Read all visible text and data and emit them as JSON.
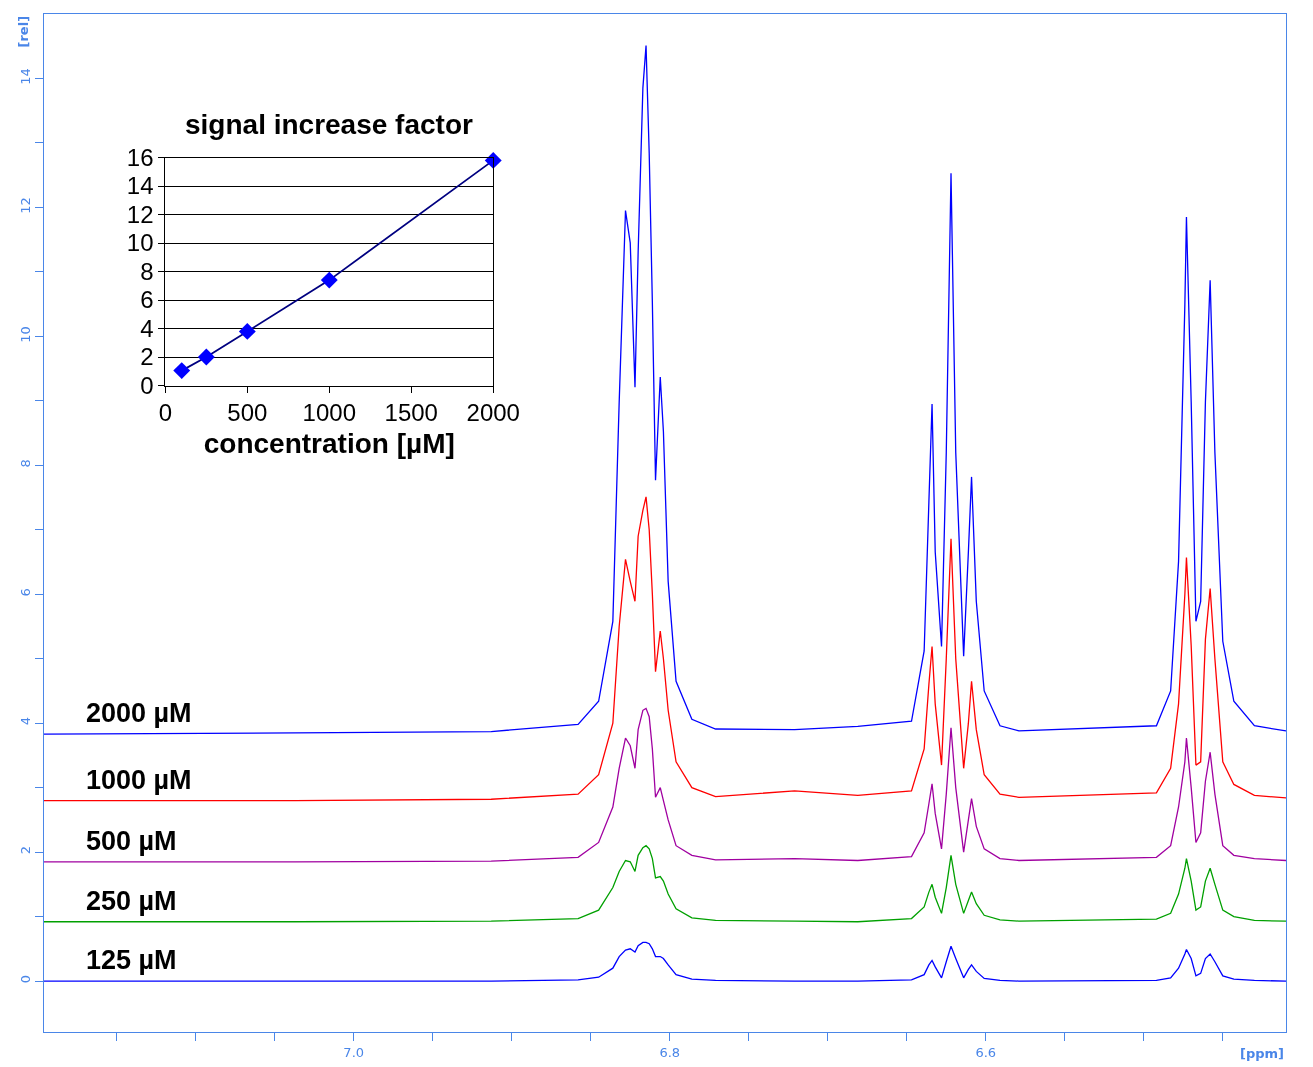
{
  "chart_data": [
    {
      "type": "line",
      "xlabel": "[ppm]",
      "ylabel": "[rel]",
      "xlim": [
        7.196,
        6.41
      ],
      "ylim": [
        -0.79,
        15.0
      ],
      "xticks": [
        {
          "value": 7.15,
          "label": null
        },
        {
          "value": 7.1,
          "label": null
        },
        {
          "value": 7.05,
          "label": null
        },
        {
          "value": 7.0,
          "label": "7.0"
        },
        {
          "value": 6.95,
          "label": null
        },
        {
          "value": 6.9,
          "label": null
        },
        {
          "value": 6.85,
          "label": null
        },
        {
          "value": 6.8,
          "label": "6.8"
        },
        {
          "value": 6.75,
          "label": null
        },
        {
          "value": 6.7,
          "label": null
        },
        {
          "value": 6.65,
          "label": null
        },
        {
          "value": 6.6,
          "label": "6.6"
        },
        {
          "value": 6.55,
          "label": null
        },
        {
          "value": 6.5,
          "label": null
        },
        {
          "value": 6.45,
          "label": null
        }
      ],
      "yticks": [
        0,
        {
          "value": 1,
          "label": null
        },
        2,
        {
          "value": 3,
          "label": null
        },
        4,
        {
          "value": 5,
          "label": null
        },
        6,
        {
          "value": 7,
          "label": null
        },
        8,
        {
          "value": 9,
          "label": null
        },
        10,
        {
          "value": 11,
          "label": null
        },
        12,
        {
          "value": 13,
          "label": null
        },
        14
      ],
      "grid": false,
      "marker": "none",
      "line_style": "solid",
      "x": [
        7.196,
        7.037,
        6.913,
        6.858,
        6.845,
        6.836,
        6.832,
        6.828,
        6.825,
        6.822,
        6.82,
        6.817,
        6.815,
        6.813,
        6.811,
        6.809,
        6.806,
        6.804,
        6.801,
        6.796,
        6.786,
        6.771,
        6.721,
        6.681,
        6.647,
        6.639,
        6.636,
        6.634,
        6.632,
        6.628,
        6.625,
        6.622,
        6.619,
        6.614,
        6.611,
        6.609,
        6.606,
        6.601,
        6.591,
        6.579,
        6.492,
        6.483,
        6.478,
        6.474,
        6.473,
        6.47,
        6.467,
        6.464,
        6.461,
        6.458,
        6.455,
        6.45,
        6.443,
        6.43,
        6.41
      ],
      "series": [
        {
          "name": "2000 µM",
          "color": "#0000ff",
          "values": [
            3.83,
            3.85,
            3.87,
            3.98,
            4.34,
            5.58,
            8.98,
            11.95,
            11.45,
            9.21,
            11.3,
            13.85,
            14.51,
            12.84,
            10.52,
            7.77,
            9.37,
            8.52,
            6.2,
            4.65,
            4.06,
            3.91,
            3.9,
            3.95,
            4.03,
            5.12,
            7.43,
            8.95,
            6.66,
            5.19,
            8.2,
            12.53,
            8.2,
            5.04,
            6.66,
            7.82,
            5.89,
            4.5,
            3.96,
            3.88,
            3.96,
            4.5,
            6.51,
            10.5,
            11.85,
            8.98,
            5.58,
            5.89,
            8.98,
            10.87,
            8.2,
            5.27,
            4.34,
            3.96,
            3.88
          ]
        },
        {
          "name": "1000 µM",
          "color": "#ff0000",
          "values": [
            2.8,
            2.8,
            2.82,
            2.9,
            3.2,
            4.0,
            5.5,
            6.54,
            6.2,
            5.89,
            6.9,
            7.3,
            7.51,
            7.0,
            6.0,
            4.8,
            5.43,
            5.0,
            4.2,
            3.4,
            3.0,
            2.86,
            2.95,
            2.88,
            2.95,
            3.6,
            4.6,
            5.19,
            4.3,
            3.35,
            5.0,
            6.86,
            5.0,
            3.3,
            4.0,
            4.65,
            3.9,
            3.2,
            2.9,
            2.85,
            2.92,
            3.3,
            4.3,
            6.0,
            6.57,
            5.2,
            3.35,
            3.4,
            5.3,
            6.09,
            5.0,
            3.4,
            3.05,
            2.88,
            2.84
          ]
        },
        {
          "name": "500 µM",
          "color": "#a000a0",
          "values": [
            1.85,
            1.85,
            1.86,
            1.92,
            2.15,
            2.7,
            3.3,
            3.77,
            3.65,
            3.3,
            3.9,
            4.2,
            4.23,
            4.1,
            3.6,
            2.85,
            3.0,
            2.8,
            2.5,
            2.1,
            1.95,
            1.88,
            1.9,
            1.87,
            1.93,
            2.3,
            2.75,
            3.06,
            2.6,
            2.05,
            2.9,
            3.93,
            3.0,
            2.0,
            2.5,
            2.83,
            2.4,
            2.05,
            1.9,
            1.87,
            1.92,
            2.1,
            2.7,
            3.4,
            3.77,
            3.0,
            2.15,
            2.3,
            3.1,
            3.55,
            2.9,
            2.1,
            1.95,
            1.9,
            1.87
          ]
        },
        {
          "name": "250 µM",
          "color": "#00a000",
          "values": [
            0.92,
            0.92,
            0.93,
            0.97,
            1.1,
            1.45,
            1.7,
            1.87,
            1.85,
            1.7,
            1.95,
            2.07,
            2.1,
            2.05,
            1.9,
            1.6,
            1.62,
            1.55,
            1.35,
            1.12,
            0.98,
            0.94,
            0.93,
            0.92,
            0.97,
            1.15,
            1.38,
            1.5,
            1.3,
            1.05,
            1.45,
            1.95,
            1.5,
            1.05,
            1.25,
            1.38,
            1.2,
            1.02,
            0.95,
            0.93,
            0.96,
            1.05,
            1.35,
            1.75,
            1.9,
            1.55,
            1.1,
            1.15,
            1.55,
            1.75,
            1.5,
            1.1,
            1.0,
            0.94,
            0.93
          ]
        },
        {
          "name": "125 µM",
          "color": "#0000ff",
          "values": [
            0,
            0,
            0,
            0.02,
            0.06,
            0.2,
            0.38,
            0.48,
            0.5,
            0.45,
            0.55,
            0.6,
            0.6,
            0.58,
            0.5,
            0.38,
            0.38,
            0.35,
            0.25,
            0.1,
            0.03,
            0.01,
            0,
            0,
            0.02,
            0.1,
            0.25,
            0.32,
            0.22,
            0.05,
            0.3,
            0.54,
            0.35,
            0.05,
            0.18,
            0.25,
            0.15,
            0.04,
            0.01,
            0,
            0.01,
            0.05,
            0.2,
            0.42,
            0.49,
            0.35,
            0.08,
            0.12,
            0.35,
            0.42,
            0.3,
            0.08,
            0.03,
            0.01,
            0
          ]
        }
      ]
    },
    {
      "type": "line",
      "title": "signal increase factor",
      "xlabel": "concentration [µM]",
      "xlim": [
        0,
        2000
      ],
      "ylim": [
        0,
        16
      ],
      "xticks": [
        0,
        500,
        1000,
        1500,
        2000
      ],
      "yticks": [
        0,
        2,
        4,
        6,
        8,
        10,
        12,
        14,
        16
      ],
      "grid": "y",
      "marker": "diamond",
      "line_style": "solid",
      "x": [
        100,
        250,
        500,
        1000,
        2000
      ],
      "series": [
        {
          "color": "#0000ff",
          "values": [
            1.05,
            2.0,
            3.8,
            7.4,
            15.8
          ]
        }
      ]
    }
  ]
}
